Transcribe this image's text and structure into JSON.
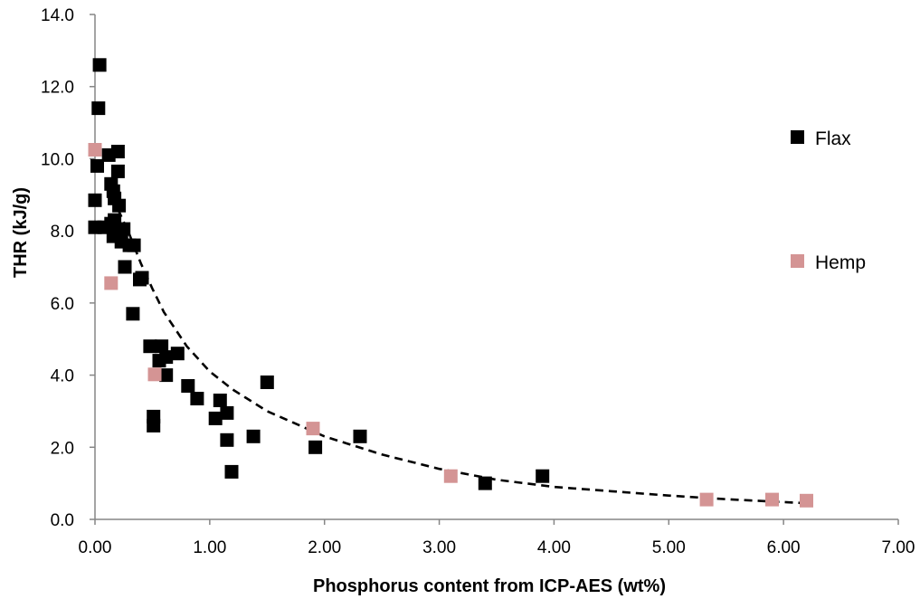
{
  "chart_data": {
    "type": "scatter",
    "title": "",
    "xlabel": "Phosphorus content from ICP-AES (wt%)",
    "ylabel": "THR (kJ/g)",
    "xlim": [
      0,
      7
    ],
    "ylim": [
      0,
      14
    ],
    "x_ticks": [
      "0.00",
      "1.00",
      "2.00",
      "3.00",
      "4.00",
      "5.00",
      "6.00",
      "7.00"
    ],
    "y_ticks": [
      "0.0",
      "2.0",
      "4.0",
      "6.0",
      "8.0",
      "10.0",
      "12.0",
      "14.0"
    ],
    "grid": false,
    "legend_position": "right",
    "series": [
      {
        "name": "Flax",
        "color": "#000000",
        "marker": "square",
        "points": [
          [
            0.04,
            12.6
          ],
          [
            0.03,
            11.4
          ],
          [
            0.02,
            9.8
          ],
          [
            0.0,
            8.85
          ],
          [
            0.0,
            8.1
          ],
          [
            0.08,
            8.1
          ],
          [
            0.12,
            10.1
          ],
          [
            0.2,
            10.2
          ],
          [
            0.2,
            9.65
          ],
          [
            0.14,
            9.3
          ],
          [
            0.16,
            9.1
          ],
          [
            0.17,
            8.9
          ],
          [
            0.21,
            8.7
          ],
          [
            0.17,
            8.3
          ],
          [
            0.14,
            8.2
          ],
          [
            0.16,
            7.85
          ],
          [
            0.25,
            8.05
          ],
          [
            0.23,
            7.7
          ],
          [
            0.3,
            7.6
          ],
          [
            0.34,
            7.6
          ],
          [
            0.26,
            7.0
          ],
          [
            0.39,
            6.65
          ],
          [
            0.41,
            6.7
          ],
          [
            0.33,
            5.7
          ],
          [
            0.48,
            4.8
          ],
          [
            0.58,
            4.8
          ],
          [
            0.56,
            4.4
          ],
          [
            0.62,
            4.5
          ],
          [
            0.72,
            4.6
          ],
          [
            0.62,
            4.0
          ],
          [
            0.81,
            3.7
          ],
          [
            0.89,
            3.35
          ],
          [
            1.09,
            3.3
          ],
          [
            1.05,
            2.8
          ],
          [
            1.15,
            2.95
          ],
          [
            1.5,
            3.8
          ],
          [
            1.15,
            2.2
          ],
          [
            1.38,
            2.3
          ],
          [
            1.19,
            1.32
          ],
          [
            0.51,
            2.85
          ],
          [
            0.51,
            2.6
          ],
          [
            1.92,
            2.0
          ],
          [
            2.31,
            2.3
          ],
          [
            3.4,
            1.0
          ],
          [
            3.9,
            1.2
          ]
        ]
      },
      {
        "name": "Hemp",
        "color": "#d49494",
        "marker": "square",
        "points": [
          [
            0.0,
            10.25
          ],
          [
            0.14,
            6.55
          ],
          [
            0.52,
            4.02
          ],
          [
            1.9,
            2.52
          ],
          [
            3.1,
            1.2
          ],
          [
            5.33,
            0.55
          ],
          [
            5.9,
            0.55
          ],
          [
            6.2,
            0.52
          ]
        ]
      }
    ],
    "trendline": {
      "style": "dashed",
      "color": "#000000",
      "x_range": [
        0.12,
        6.2
      ],
      "points": [
        [
          0.12,
          9.3
        ],
        [
          0.2,
          8.6
        ],
        [
          0.3,
          7.9
        ],
        [
          0.4,
          7.1
        ],
        [
          0.5,
          6.4
        ],
        [
          0.6,
          5.75
        ],
        [
          0.8,
          4.8
        ],
        [
          1.0,
          4.1
        ],
        [
          1.2,
          3.6
        ],
        [
          1.5,
          3.0
        ],
        [
          2.0,
          2.3
        ],
        [
          2.5,
          1.8
        ],
        [
          3.0,
          1.4
        ],
        [
          3.5,
          1.1
        ],
        [
          4.0,
          0.9
        ],
        [
          4.5,
          0.78
        ],
        [
          5.0,
          0.66
        ],
        [
          5.5,
          0.56
        ],
        [
          6.0,
          0.48
        ],
        [
          6.2,
          0.45
        ]
      ]
    }
  }
}
